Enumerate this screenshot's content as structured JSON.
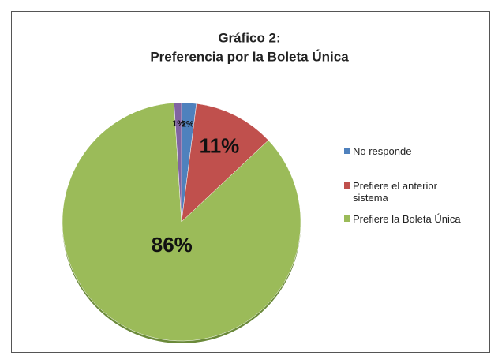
{
  "chart_data": {
    "type": "pie",
    "title": "Gráfico 2:",
    "subtitle": "Preferencia por la Boleta Única",
    "categories": [
      "No responde",
      "Prefiere el anterior sistema",
      "Prefiere la Boleta Única",
      null
    ],
    "values": [
      2,
      11,
      86,
      1
    ],
    "value_labels": [
      "2%",
      "11%",
      "86%",
      "1%"
    ],
    "colors": [
      "#4f81bd",
      "#c0504d",
      "#9bbb59",
      "#8064a2"
    ],
    "legend": "right"
  }
}
